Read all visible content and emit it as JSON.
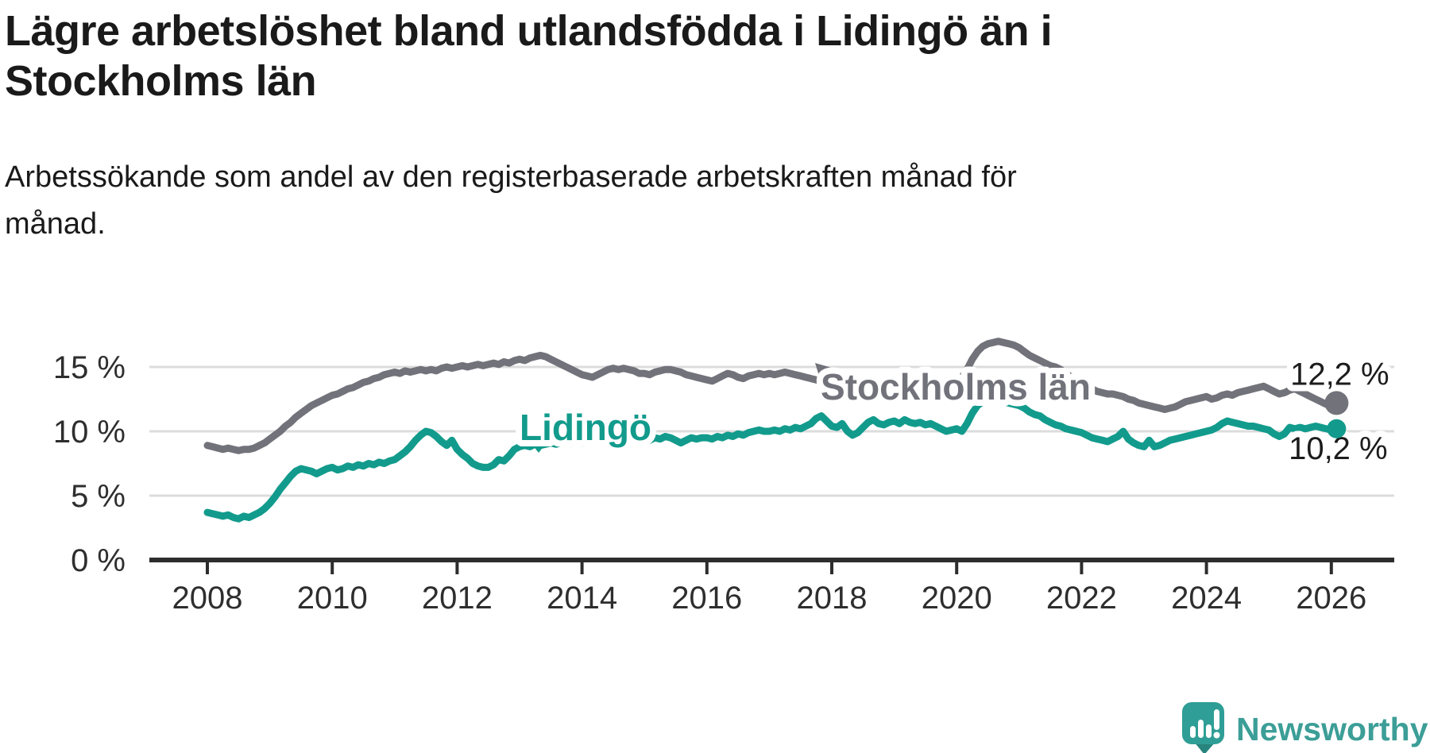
{
  "title_lines": [
    "Lägre arbetslöshet bland utlandsfödda i Lidingö än i",
    "Stockholms län"
  ],
  "subtitle_lines": [
    "Arbetssökande som andel av den registerbaserade arbetskraften månad för",
    "månad."
  ],
  "branding": {
    "wordmark": "Newsworthy",
    "logo_color": "#2f9e96",
    "logo_shadow_color": "#27857e",
    "wordmark_color": "#3c9e97"
  },
  "chart_data": {
    "type": "line",
    "unit": "%",
    "x_start_year": 2008,
    "x_step_months": 1,
    "x_end_label_period": "2026",
    "ylim": [
      0,
      17.5
    ],
    "grid": true,
    "legend_position": "inline-labels",
    "y_ticks": [
      {
        "value": 15,
        "label": "15 %"
      },
      {
        "value": 10,
        "label": "10 %"
      },
      {
        "value": 5,
        "label": "5 %"
      },
      {
        "value": 0,
        "label": "0 %"
      }
    ],
    "x_ticks": [
      {
        "value": 2008,
        "label": "2008"
      },
      {
        "value": 2010,
        "label": "2010"
      },
      {
        "value": 2012,
        "label": "2012"
      },
      {
        "value": 2014,
        "label": "2014"
      },
      {
        "value": 2016,
        "label": "2016"
      },
      {
        "value": 2018,
        "label": "2018"
      },
      {
        "value": 2020,
        "label": "2020"
      },
      {
        "value": 2022,
        "label": "2022"
      },
      {
        "value": 2024,
        "label": "2024"
      },
      {
        "value": 2026,
        "label": "2026"
      }
    ],
    "series": [
      {
        "name": "Stockholms län",
        "color": "#72727b",
        "end_label": "12,2 %",
        "end_value": 12.2,
        "values": [
          8.9,
          8.8,
          8.7,
          8.6,
          8.7,
          8.6,
          8.5,
          8.6,
          8.6,
          8.7,
          8.9,
          9.1,
          9.4,
          9.7,
          10.0,
          10.4,
          10.7,
          11.1,
          11.4,
          11.7,
          12.0,
          12.2,
          12.4,
          12.6,
          12.8,
          12.9,
          13.1,
          13.3,
          13.4,
          13.6,
          13.8,
          13.9,
          14.1,
          14.2,
          14.4,
          14.5,
          14.6,
          14.5,
          14.7,
          14.6,
          14.7,
          14.8,
          14.7,
          14.8,
          14.7,
          14.9,
          15.0,
          14.9,
          15.0,
          15.1,
          15.0,
          15.1,
          15.2,
          15.1,
          15.2,
          15.3,
          15.2,
          15.4,
          15.3,
          15.5,
          15.6,
          15.5,
          15.7,
          15.8,
          15.9,
          15.8,
          15.6,
          15.4,
          15.2,
          15.0,
          14.8,
          14.6,
          14.4,
          14.3,
          14.2,
          14.4,
          14.6,
          14.8,
          14.9,
          14.8,
          14.9,
          14.8,
          14.7,
          14.5,
          14.5,
          14.4,
          14.6,
          14.7,
          14.8,
          14.8,
          14.7,
          14.6,
          14.4,
          14.3,
          14.2,
          14.1,
          14.0,
          13.9,
          14.1,
          14.3,
          14.5,
          14.4,
          14.2,
          14.1,
          14.3,
          14.4,
          14.5,
          14.4,
          14.5,
          14.4,
          14.5,
          14.6,
          14.5,
          14.4,
          14.3,
          14.2,
          14.1,
          14.0,
          13.9,
          13.9,
          13.8,
          13.8,
          13.7,
          13.7,
          13.6,
          13.6,
          13.5,
          13.5,
          13.6,
          13.6,
          13.7,
          13.7,
          13.6,
          13.6,
          13.5,
          13.5,
          13.6,
          13.6,
          13.7,
          13.7,
          13.8,
          13.8,
          13.9,
          13.9,
          14.0,
          14.2,
          14.8,
          15.6,
          16.2,
          16.6,
          16.8,
          16.9,
          17.0,
          16.9,
          16.8,
          16.7,
          16.5,
          16.2,
          15.9,
          15.7,
          15.5,
          15.3,
          15.1,
          15.0,
          14.8,
          14.5,
          14.2,
          13.9,
          13.7,
          13.5,
          13.3,
          13.1,
          13.0,
          12.9,
          12.9,
          12.8,
          12.7,
          12.5,
          12.4,
          12.2,
          12.1,
          12.0,
          11.9,
          11.8,
          11.7,
          11.8,
          11.9,
          12.1,
          12.3,
          12.4,
          12.5,
          12.6,
          12.7,
          12.5,
          12.6,
          12.8,
          12.9,
          12.8,
          13.0,
          13.1,
          13.2,
          13.3,
          13.4,
          13.5,
          13.3,
          13.1,
          12.9,
          13.0,
          13.2,
          13.3,
          13.1,
          12.9,
          12.7,
          12.5,
          12.3,
          12.1,
          12.1,
          12.2
        ]
      },
      {
        "name": "Lidingö",
        "color": "#129b8c",
        "end_label": "10,2 %",
        "end_value": 10.2,
        "values": [
          3.7,
          3.6,
          3.5,
          3.4,
          3.5,
          3.3,
          3.2,
          3.4,
          3.3,
          3.5,
          3.7,
          4.0,
          4.4,
          4.9,
          5.5,
          6.0,
          6.5,
          6.9,
          7.1,
          7.0,
          6.9,
          6.7,
          6.9,
          7.1,
          7.2,
          7.0,
          7.1,
          7.3,
          7.2,
          7.4,
          7.3,
          7.5,
          7.4,
          7.6,
          7.5,
          7.7,
          7.8,
          8.1,
          8.4,
          8.8,
          9.3,
          9.7,
          10.0,
          9.9,
          9.6,
          9.2,
          8.9,
          9.3,
          8.6,
          8.2,
          7.9,
          7.5,
          7.3,
          7.2,
          7.2,
          7.4,
          7.8,
          7.7,
          8.1,
          8.6,
          8.8,
          8.9,
          8.8,
          9.0,
          8.9,
          9.0,
          9.1,
          9.0,
          9.1,
          9.2,
          9.1,
          9.2,
          9.1,
          9.2,
          9.3,
          9.2,
          9.3,
          9.4,
          9.3,
          9.4,
          9.5,
          9.4,
          9.3,
          9.4,
          9.4,
          9.3,
          9.5,
          9.4,
          9.6,
          9.5,
          9.3,
          9.1,
          9.3,
          9.5,
          9.4,
          9.5,
          9.5,
          9.4,
          9.6,
          9.5,
          9.7,
          9.6,
          9.8,
          9.7,
          9.9,
          10.0,
          10.1,
          10.0,
          10.0,
          10.1,
          10.0,
          10.2,
          10.1,
          10.3,
          10.2,
          10.4,
          10.6,
          11.0,
          11.2,
          10.8,
          10.4,
          10.3,
          10.6,
          10.0,
          9.7,
          9.9,
          10.3,
          10.7,
          10.9,
          10.6,
          10.5,
          10.7,
          10.8,
          10.6,
          10.9,
          10.7,
          10.6,
          10.7,
          10.5,
          10.6,
          10.4,
          10.2,
          10.0,
          10.1,
          10.2,
          10.0,
          10.6,
          11.4,
          12.0,
          12.3,
          12.4,
          12.5,
          12.4,
          12.3,
          12.2,
          12.1,
          12.0,
          11.8,
          11.5,
          11.3,
          11.2,
          10.9,
          10.7,
          10.5,
          10.4,
          10.2,
          10.1,
          10.0,
          9.9,
          9.7,
          9.5,
          9.4,
          9.3,
          9.2,
          9.4,
          9.6,
          10.0,
          9.4,
          9.1,
          8.9,
          8.8,
          9.3,
          8.8,
          8.9,
          9.1,
          9.3,
          9.4,
          9.5,
          9.6,
          9.7,
          9.8,
          9.9,
          10.0,
          10.1,
          10.3,
          10.6,
          10.8,
          10.7,
          10.6,
          10.5,
          10.4,
          10.4,
          10.3,
          10.2,
          10.1,
          9.8,
          9.6,
          9.8,
          10.3,
          10.2,
          10.3,
          10.2,
          10.3,
          10.4,
          10.3,
          10.2,
          10.1,
          10.2
        ]
      }
    ]
  }
}
